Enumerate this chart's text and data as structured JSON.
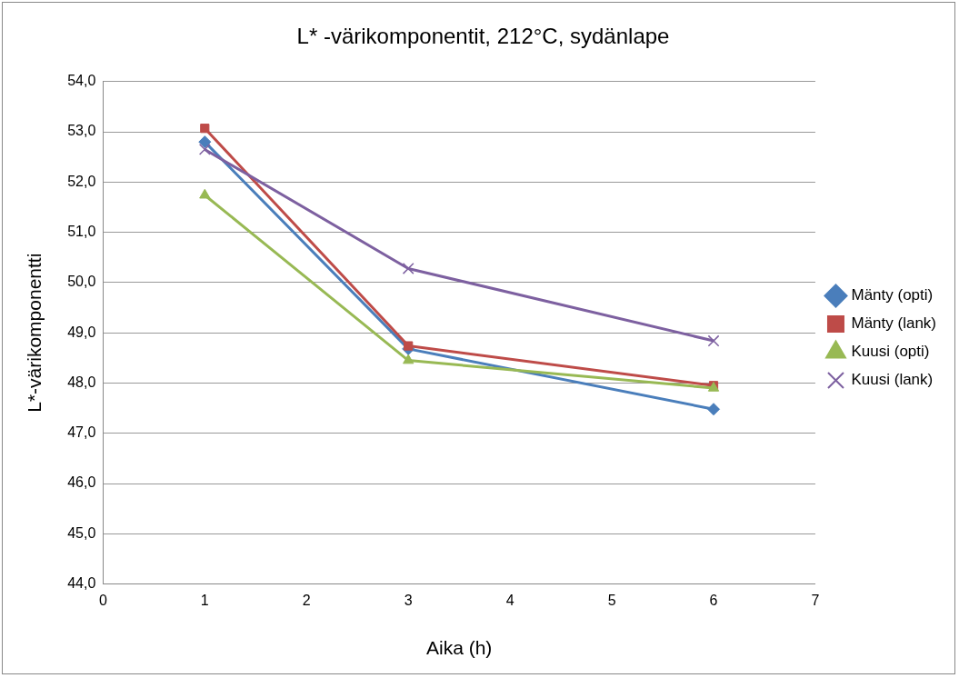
{
  "chart_data": {
    "type": "line",
    "title": "L* -värikomponentit, 212°C, sydänlape",
    "xlabel": "Aika (h)",
    "ylabel": "L*-värikomponentti",
    "x": [
      1,
      3,
      6
    ],
    "series": [
      {
        "name": "Mänty (opti)",
        "color": "#4a7ebb",
        "marker": "diamond",
        "values": [
          52.8,
          48.68,
          47.48
        ]
      },
      {
        "name": "Mänty (lank)",
        "color": "#be4b48",
        "marker": "square",
        "values": [
          53.07,
          48.74,
          47.95
        ]
      },
      {
        "name": "Kuusi (opti)",
        "color": "#98b954",
        "marker": "triangle",
        "values": [
          51.74,
          48.45,
          47.9
        ]
      },
      {
        "name": "Kuusi (lank)",
        "color": "#7d60a0",
        "marker": "cross",
        "values": [
          52.65,
          50.28,
          48.84
        ]
      }
    ],
    "xlim": [
      0,
      7
    ],
    "xticks": [
      0,
      1,
      2,
      3,
      4,
      5,
      6,
      7
    ],
    "ylim": [
      44,
      54
    ],
    "yticks": [
      {
        "value": 44,
        "label": "44,0"
      },
      {
        "value": 45,
        "label": "45,0"
      },
      {
        "value": 46,
        "label": "46,0"
      },
      {
        "value": 47,
        "label": "47,0"
      },
      {
        "value": 48,
        "label": "48,0"
      },
      {
        "value": 49,
        "label": "49,0"
      },
      {
        "value": 50,
        "label": "50,0"
      },
      {
        "value": 51,
        "label": "51,0"
      },
      {
        "value": 52,
        "label": "52,0"
      },
      {
        "value": 53,
        "label": "53,0"
      },
      {
        "value": 54,
        "label": "54,0"
      }
    ],
    "grid": "y",
    "legend": "right",
    "line_style": "solid"
  }
}
